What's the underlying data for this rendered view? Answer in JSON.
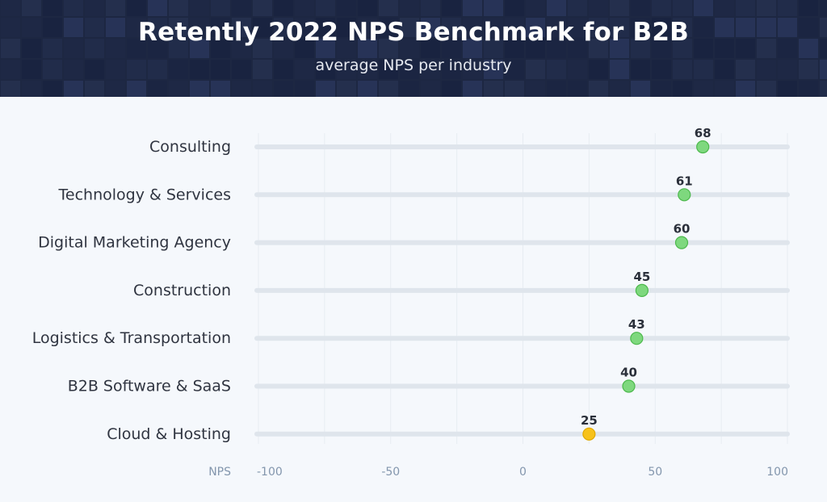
{
  "header": {
    "title": "Retently 2022 NPS Benchmark for B2B",
    "subtitle": "average NPS per industry"
  },
  "colors": {
    "header_bg": "#1d2742",
    "track": "#dfe5ec",
    "grid": "#e7ecf2",
    "positive_dot": "#7ed87e",
    "positive_dot_stroke": "#4cb84c",
    "neutral_dot": "#f7c21b",
    "neutral_dot_stroke": "#e0a800"
  },
  "chart_data": {
    "type": "scatter",
    "title": "Retently 2022 NPS Benchmark for B2B",
    "subtitle": "average NPS per industry",
    "xlabel": "NPS",
    "ylabel": "",
    "xlim": [
      -100,
      100
    ],
    "x_ticks": [
      "-100",
      "-50",
      "0",
      "50",
      "100"
    ],
    "x_tick_values": [
      -100,
      -50,
      0,
      50,
      100
    ],
    "grid": true,
    "categories": [
      "Consulting",
      "Technology & Services",
      "Digital Marketing Agency",
      "Construction",
      "Logistics & Transportation",
      "B2B Software & SaaS",
      "Cloud & Hosting"
    ],
    "values": [
      68,
      61,
      60,
      45,
      43,
      40,
      25
    ],
    "value_labels": [
      "68",
      "61",
      "60",
      "45",
      "43",
      "40",
      "25"
    ],
    "point_colors": [
      "#7ed87e",
      "#7ed87e",
      "#7ed87e",
      "#7ed87e",
      "#7ed87e",
      "#7ed87e",
      "#f7c21b"
    ]
  }
}
